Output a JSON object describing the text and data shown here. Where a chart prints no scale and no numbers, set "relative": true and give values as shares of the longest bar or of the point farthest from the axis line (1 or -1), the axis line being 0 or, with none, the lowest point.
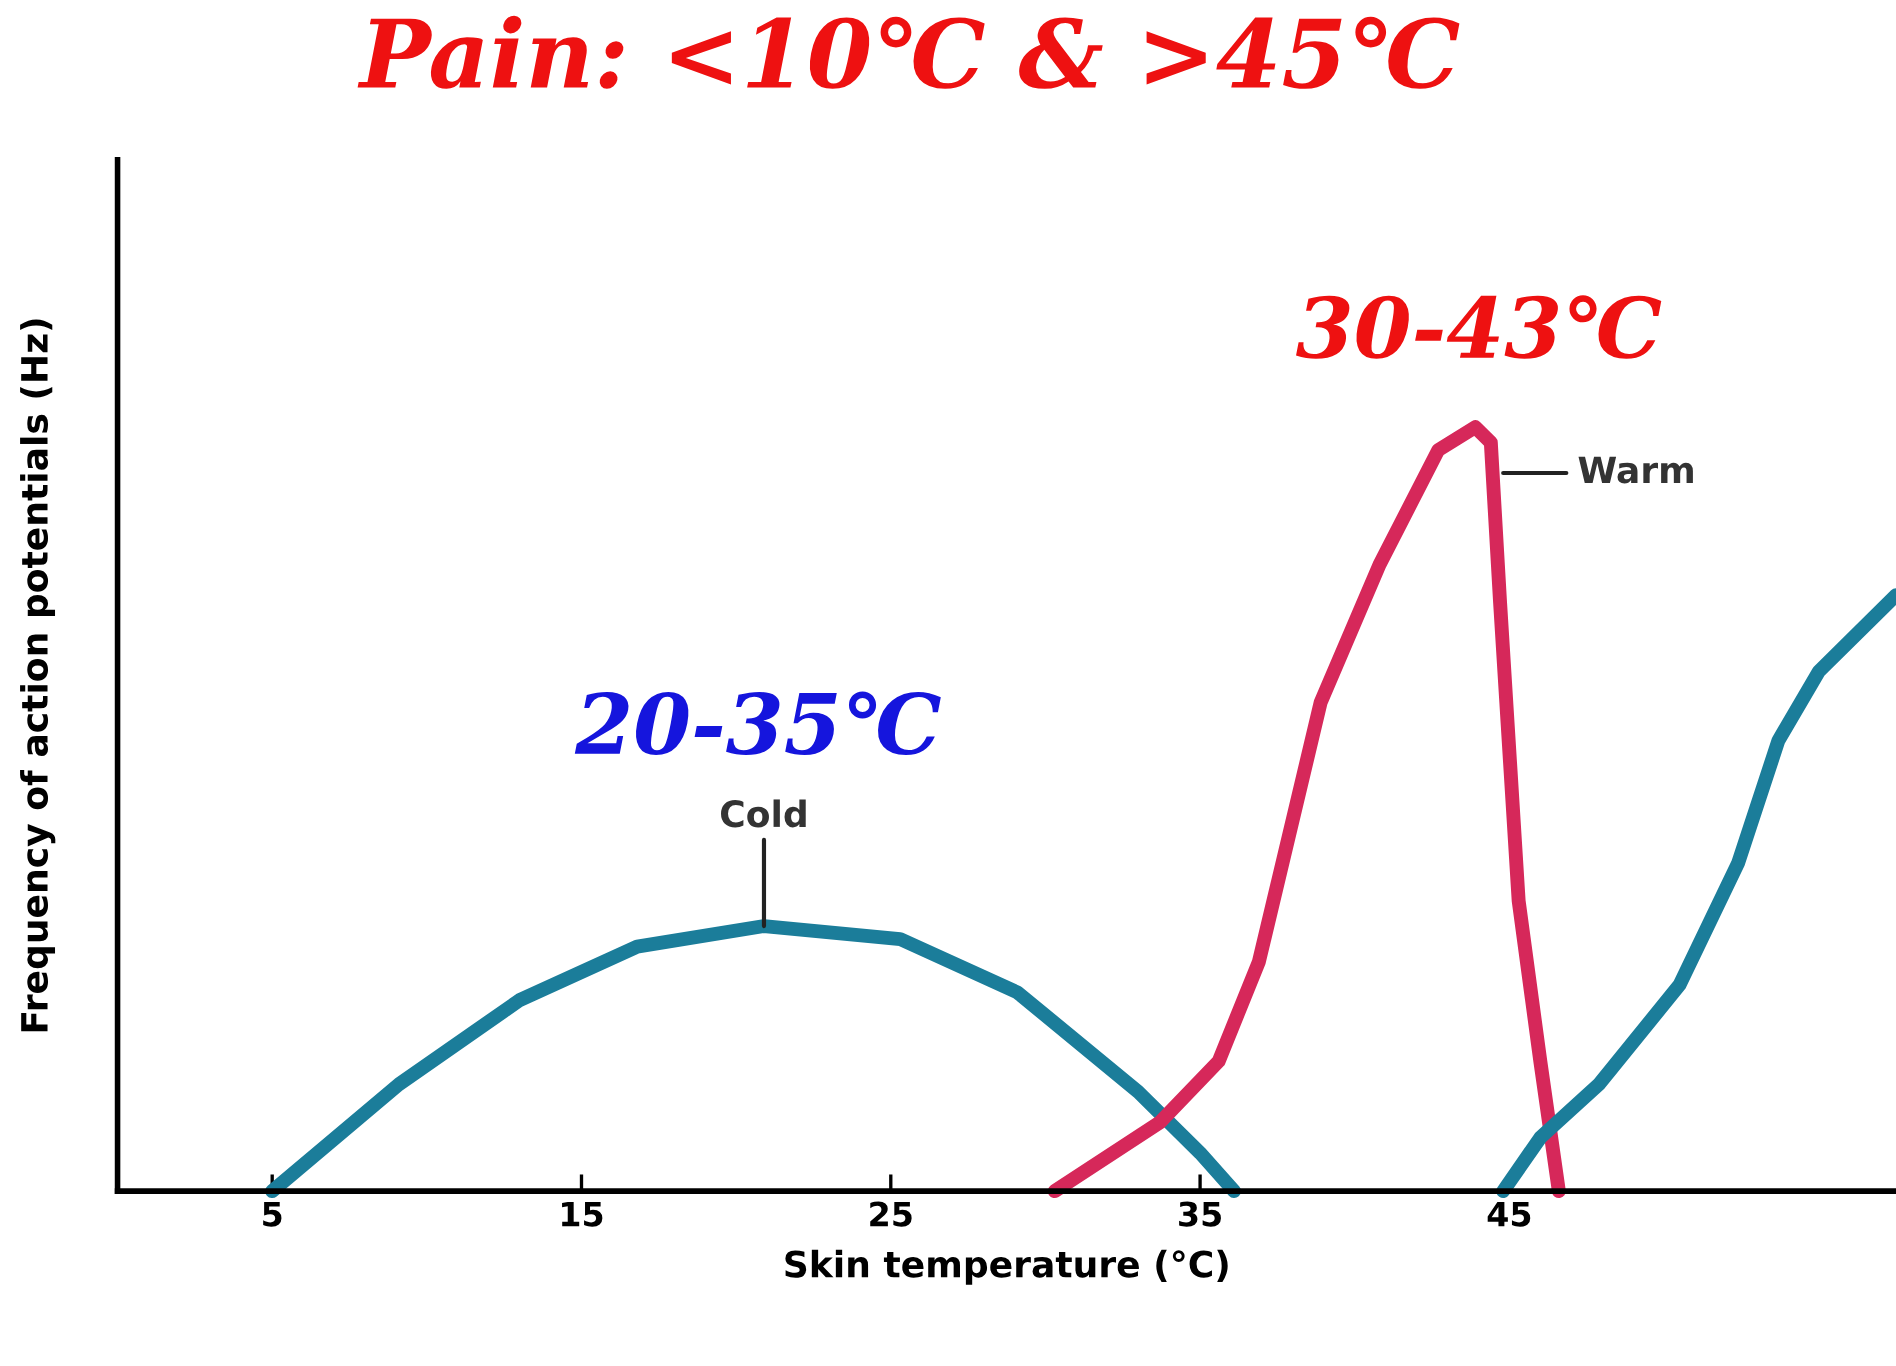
{
  "chart_data": {
    "type": "line",
    "title": "Pain: <10℃ & >45℃",
    "xlabel": "Skin temperature (°C)",
    "ylabel": "Frequency of action potentials (Hz)",
    "relative": true,
    "xlim": [
      0,
      57.5
    ],
    "xticks": [
      5,
      15,
      25,
      35,
      45
    ],
    "grid": false,
    "legend": false,
    "marker": "none",
    "line_style": "solid",
    "annotations": [
      "20-35℃",
      "30-43℃"
    ],
    "series": [
      {
        "name": "Cold",
        "color": "#1b7d9a",
        "x": [
          5,
          9.1,
          13.0,
          16.8,
          20.9,
          25.3,
          29.1,
          33.0,
          35.0,
          36.1
        ],
        "values": [
          0,
          0.14,
          0.25,
          0.32,
          0.347,
          0.33,
          0.26,
          0.13,
          0.05,
          0
        ]
      },
      {
        "name": "Warm",
        "color": "#d6285a",
        "x": [
          30.3,
          33.7,
          35.6,
          36.9,
          38.9,
          40.8,
          42.7,
          43.9,
          44.4,
          44.7,
          45.3,
          46.0,
          46.6
        ],
        "values": [
          0,
          0.09,
          0.17,
          0.3,
          0.64,
          0.82,
          0.97,
          1.0,
          0.98,
          0.77,
          0.38,
          0.17,
          0
        ]
      },
      {
        "color": "#1b7d9a",
        "x": [
          44.8,
          46.0,
          47.9,
          50.5,
          52.4,
          53.7,
          55.0,
          57.5
        ],
        "values": [
          0,
          0.07,
          0.14,
          0.27,
          0.43,
          0.59,
          0.68,
          0.78
        ]
      }
    ]
  }
}
